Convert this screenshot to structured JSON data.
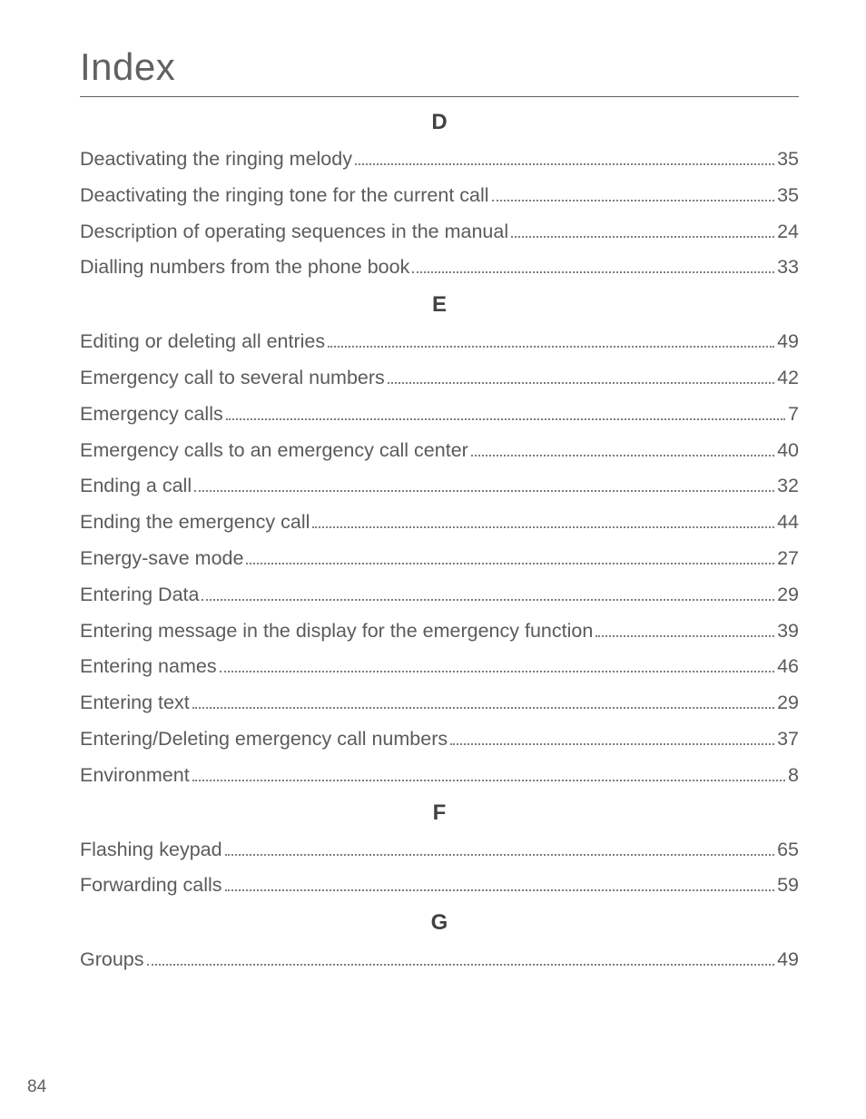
{
  "page": {
    "title": "Index",
    "number": "84"
  },
  "sections": [
    {
      "letter": "D",
      "entries": [
        {
          "label": "Deactivating the ringing melody",
          "page": "35"
        },
        {
          "label": "Deactivating the ringing tone for the current call",
          "page": "35"
        },
        {
          "label": "Description of operating sequences in the manual",
          "page": "24"
        },
        {
          "label": "Dialling numbers from the phone book",
          "page": "33"
        }
      ]
    },
    {
      "letter": "E",
      "entries": [
        {
          "label": "Editing or deleting all entries",
          "page": "49"
        },
        {
          "label": "Emergency call to several numbers",
          "page": "42"
        },
        {
          "label": "Emergency calls",
          "page": "7"
        },
        {
          "label": "Emergency calls to an emergency call center",
          "page": "40"
        },
        {
          "label": "Ending a call",
          "page": "32"
        },
        {
          "label": "Ending the emergency call",
          "page": "44"
        },
        {
          "label": "Energy-save mode",
          "page": "27"
        },
        {
          "label": "Entering Data",
          "page": "29"
        },
        {
          "label": "Entering message in the display for the emergency function",
          "page": "39"
        },
        {
          "label": "Entering names",
          "page": "46"
        },
        {
          "label": "Entering text",
          "page": "29"
        },
        {
          "label": "Entering/Deleting emergency call numbers",
          "page": "37"
        },
        {
          "label": "Environment",
          "page": "8"
        }
      ]
    },
    {
      "letter": "F",
      "entries": [
        {
          "label": "Flashing keypad",
          "page": "65"
        },
        {
          "label": "Forwarding calls",
          "page": "59"
        }
      ]
    },
    {
      "letter": "G",
      "entries": [
        {
          "label": "Groups",
          "page": "49"
        }
      ]
    }
  ]
}
